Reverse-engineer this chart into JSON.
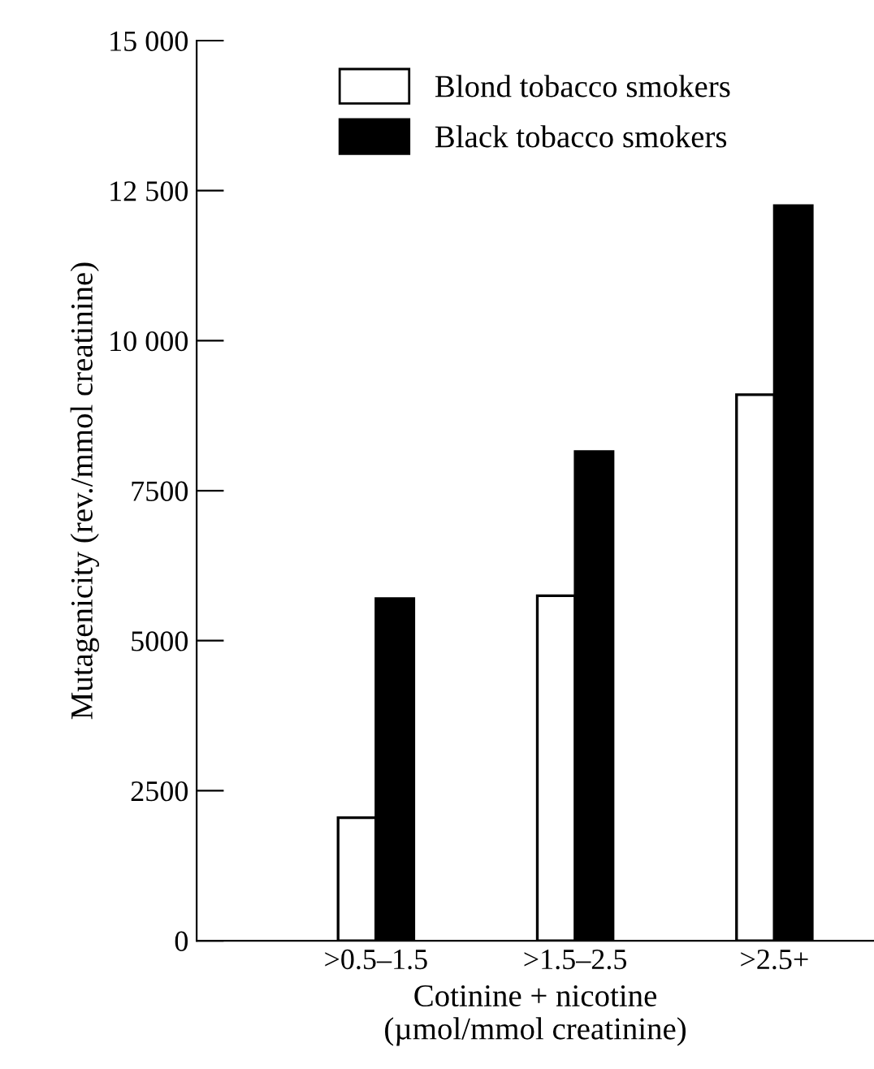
{
  "chart_data": {
    "type": "bar",
    "xlabel": "Cotinine + nicotine\n(µmol/mmol creatinine)",
    "ylabel": "Mutagenicity (rev./mmol creatinine)",
    "categories": [
      ">0.5–1.5",
      ">1.5–2.5",
      ">2.5+"
    ],
    "series": [
      {
        "name": "Blond tobacco smokers",
        "color": "#ffffff",
        "values": [
          2050,
          5750,
          9100
        ]
      },
      {
        "name": "Black tobacco smokers",
        "color": "#000000",
        "values": [
          5700,
          8150,
          12250
        ]
      }
    ],
    "ylim": [
      0,
      15000
    ],
    "yticks": [
      0,
      2500,
      5000,
      7500,
      {
        "value": 10000,
        "label": "10 000"
      },
      {
        "value": 12500,
        "label": "12 500"
      },
      {
        "value": 15000,
        "label": "15 000"
      }
    ],
    "grid": false,
    "legend": "top"
  }
}
